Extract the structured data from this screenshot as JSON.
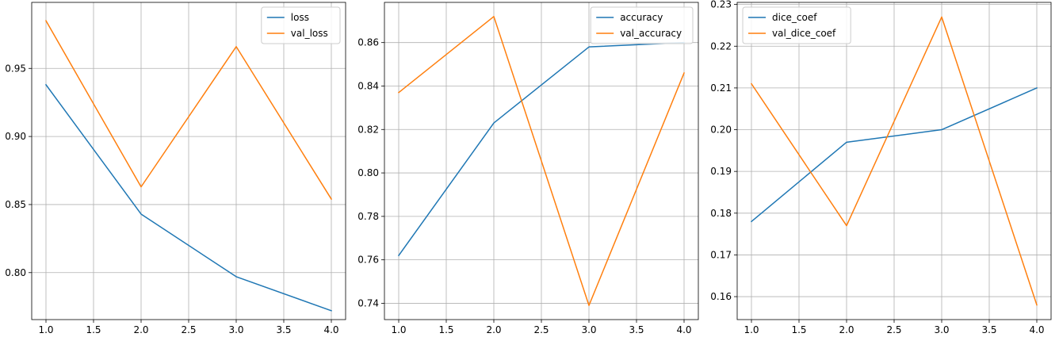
{
  "chart_data": [
    {
      "type": "line",
      "title": "",
      "xlabel": "",
      "ylabel": "",
      "x": [
        1.0,
        2.0,
        3.0,
        4.0
      ],
      "xlim": [
        0.85,
        4.15
      ],
      "ylim": [
        0.7655,
        0.9985
      ],
      "xticks": [
        1.0,
        1.5,
        2.0,
        2.5,
        3.0,
        3.5,
        4.0
      ],
      "xtick_labels": [
        "1.0",
        "1.5",
        "2.0",
        "2.5",
        "3.0",
        "3.5",
        "4.0"
      ],
      "yticks": [
        0.8,
        0.85,
        0.9,
        0.95
      ],
      "ytick_labels": [
        "0.80",
        "0.85",
        "0.90",
        "0.95"
      ],
      "grid": true,
      "legend_position": "top-right",
      "series": [
        {
          "name": "loss",
          "values": [
            0.938,
            0.843,
            0.797,
            0.772
          ],
          "color": "#1f77b4"
        },
        {
          "name": "val_loss",
          "values": [
            0.985,
            0.863,
            0.966,
            0.854
          ],
          "color": "#ff7f0e"
        }
      ]
    },
    {
      "type": "line",
      "title": "",
      "xlabel": "",
      "ylabel": "",
      "x": [
        1.0,
        2.0,
        3.0,
        4.0
      ],
      "xlim": [
        0.85,
        4.15
      ],
      "ylim": [
        0.7325,
        0.8785
      ],
      "xticks": [
        1.0,
        1.5,
        2.0,
        2.5,
        3.0,
        3.5,
        4.0
      ],
      "xtick_labels": [
        "1.0",
        "1.5",
        "2.0",
        "2.5",
        "3.0",
        "3.5",
        "4.0"
      ],
      "yticks": [
        0.74,
        0.76,
        0.78,
        0.8,
        0.82,
        0.84,
        0.86
      ],
      "ytick_labels": [
        "0.74",
        "0.76",
        "0.78",
        "0.80",
        "0.82",
        "0.84",
        "0.86"
      ],
      "grid": true,
      "legend_position": "top-right",
      "series": [
        {
          "name": "accuracy",
          "values": [
            0.762,
            0.823,
            0.858,
            0.86
          ],
          "color": "#1f77b4"
        },
        {
          "name": "val_accuracy",
          "values": [
            0.837,
            0.872,
            0.739,
            0.846
          ],
          "color": "#ff7f0e"
        }
      ]
    },
    {
      "type": "line",
      "title": "",
      "xlabel": "",
      "ylabel": "",
      "x": [
        1.0,
        2.0,
        3.0,
        4.0
      ],
      "xlim": [
        0.85,
        4.15
      ],
      "ylim": [
        0.1545,
        0.2305
      ],
      "xticks": [
        1.0,
        1.5,
        2.0,
        2.5,
        3.0,
        3.5,
        4.0
      ],
      "xtick_labels": [
        "1.0",
        "1.5",
        "2.0",
        "2.5",
        "3.0",
        "3.5",
        "4.0"
      ],
      "yticks": [
        0.16,
        0.17,
        0.18,
        0.19,
        0.2,
        0.21,
        0.22,
        0.23
      ],
      "ytick_labels": [
        "0.16",
        "0.17",
        "0.18",
        "0.19",
        "0.20",
        "0.21",
        "0.22",
        "0.23"
      ],
      "grid": true,
      "legend_position": "top-left",
      "series": [
        {
          "name": "dice_coef",
          "values": [
            0.178,
            0.197,
            0.2,
            0.21
          ],
          "color": "#1f77b4"
        },
        {
          "name": "val_dice_coef",
          "values": [
            0.211,
            0.177,
            0.227,
            0.158
          ],
          "color": "#ff7f0e"
        }
      ]
    }
  ]
}
